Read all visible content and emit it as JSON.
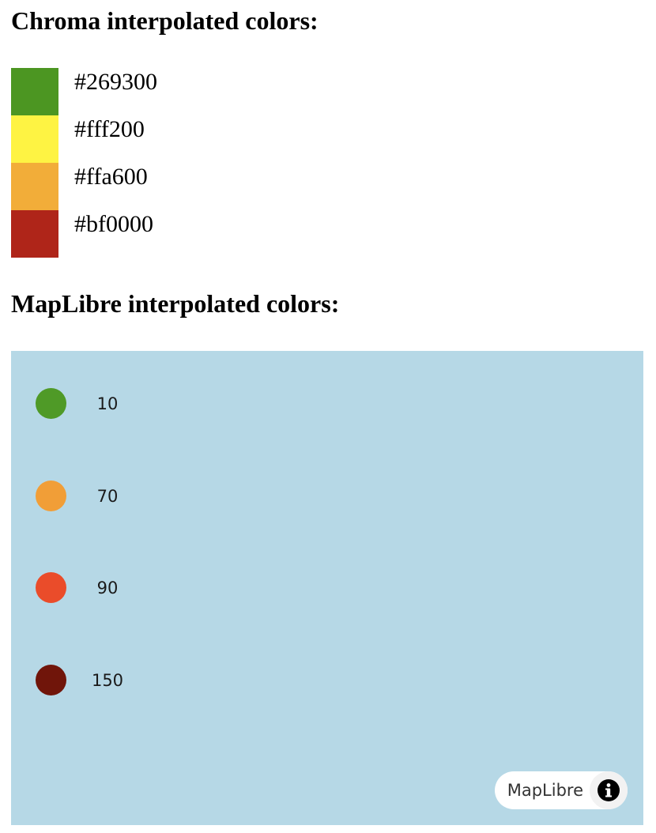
{
  "chroma": {
    "heading": "Chroma interpolated colors:",
    "swatches": [
      {
        "label": "#269300",
        "color": "#4c9622"
      },
      {
        "label": "#fff200",
        "color": "#fef343"
      },
      {
        "label": "#ffa600",
        "color": "#f2ad39"
      },
      {
        "label": "#bf0000",
        "color": "#af2519"
      }
    ]
  },
  "maplibre": {
    "heading": "MapLibre interpolated colors:",
    "map_background": "#b6d8e6",
    "points": [
      {
        "value": "10",
        "color": "#4f9a27"
      },
      {
        "value": "70",
        "color": "#f19e37"
      },
      {
        "value": "90",
        "color": "#ea4c2a"
      },
      {
        "value": "150",
        "color": "#70150a"
      }
    ],
    "attribution": {
      "text": "MapLibre",
      "icon": "info-icon"
    }
  }
}
